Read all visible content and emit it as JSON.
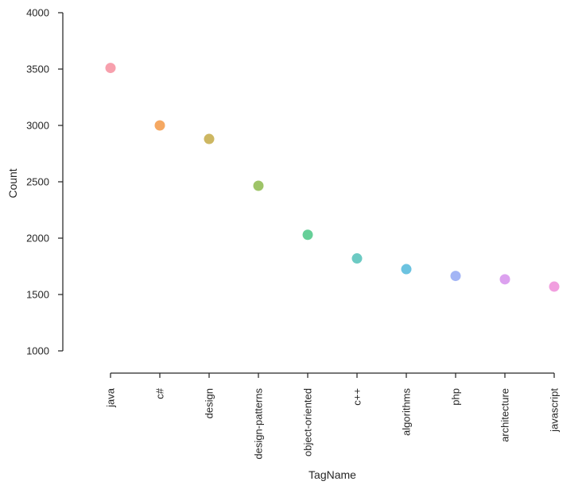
{
  "chart_data": {
    "type": "scatter",
    "title": "",
    "xlabel": "TagName",
    "ylabel": "Count",
    "categories": [
      "java",
      "c#",
      "design",
      "design-patterns",
      "object-oriented",
      "c++",
      "algorithms",
      "php",
      "architecture",
      "javascript"
    ],
    "values": [
      3510,
      3000,
      2880,
      2465,
      2030,
      1820,
      1725,
      1665,
      1635,
      1570
    ],
    "colors": [
      "#f7a0ad",
      "#f5a862",
      "#cdb762",
      "#9ec468",
      "#66cf98",
      "#6ccac3",
      "#6cc3e0",
      "#a3b5f5",
      "#dca1ef",
      "#f19fdf"
    ],
    "ylim": [
      1000,
      4000
    ],
    "yticks": [
      "1000",
      "1500",
      "2000",
      "2500",
      "3000",
      "3500",
      "4000"
    ],
    "grid": false,
    "legend": "none"
  }
}
